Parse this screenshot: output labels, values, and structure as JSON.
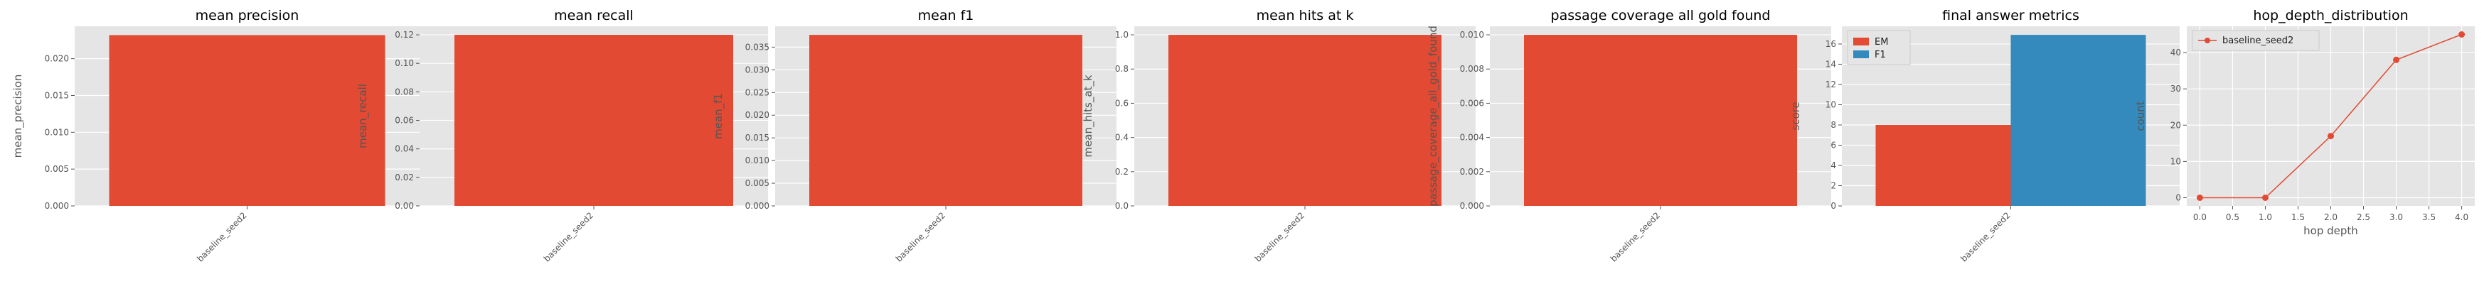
{
  "chart_data": [
    {
      "type": "bar",
      "title": "mean precision",
      "xlabel": "",
      "ylabel": "mean_precision",
      "categories": [
        "baseline_seed2"
      ],
      "series": [
        {
          "values": [
            0.0232
          ]
        }
      ],
      "ylim": [
        0,
        0.0244
      ],
      "yticks": [
        0.0,
        0.005,
        0.01,
        0.015,
        0.02
      ],
      "ytick_labels": [
        "0.000",
        "0.005",
        "0.010",
        "0.015",
        "0.020"
      ],
      "grid": true,
      "legend": "none"
    },
    {
      "type": "bar",
      "title": "mean recall",
      "xlabel": "",
      "ylabel": "mean_recall",
      "categories": [
        "baseline_seed2"
      ],
      "series": [
        {
          "values": [
            0.12
          ]
        }
      ],
      "ylim": [
        0,
        0.126
      ],
      "yticks": [
        0.0,
        0.02,
        0.04,
        0.06,
        0.08,
        0.1,
        0.12
      ],
      "ytick_labels": [
        "0.00",
        "0.02",
        "0.04",
        "0.06",
        "0.08",
        "0.10",
        "0.12"
      ],
      "grid": true,
      "legend": "none"
    },
    {
      "type": "bar",
      "title": "mean f1",
      "xlabel": "",
      "ylabel": "mean_f1",
      "categories": [
        "baseline_seed2"
      ],
      "series": [
        {
          "values": [
            0.0377
          ]
        }
      ],
      "ylim": [
        0,
        0.0396
      ],
      "yticks": [
        0.0,
        0.005,
        0.01,
        0.015,
        0.02,
        0.025,
        0.03,
        0.035
      ],
      "ytick_labels": [
        "0.000",
        "0.005",
        "0.010",
        "0.015",
        "0.020",
        "0.025",
        "0.030",
        "0.035"
      ],
      "grid": true,
      "legend": "none"
    },
    {
      "type": "bar",
      "title": "mean hits at k",
      "xlabel": "",
      "ylabel": "mean_hits_at_k",
      "categories": [
        "baseline_seed2"
      ],
      "series": [
        {
          "values": [
            1.0
          ]
        }
      ],
      "ylim": [
        0,
        1.05
      ],
      "yticks": [
        0.0,
        0.2,
        0.4,
        0.6,
        0.8,
        1.0
      ],
      "ytick_labels": [
        "0.0",
        "0.2",
        "0.4",
        "0.6",
        "0.8",
        "1.0"
      ],
      "grid": true,
      "legend": "none"
    },
    {
      "type": "bar",
      "title": "passage coverage all gold found",
      "xlabel": "",
      "ylabel": "passage_coverage_all_gold_found",
      "categories": [
        "baseline_seed2"
      ],
      "series": [
        {
          "values": [
            0.01
          ]
        }
      ],
      "ylim": [
        0,
        0.0105
      ],
      "yticks": [
        0.0,
        0.002,
        0.004,
        0.006,
        0.008,
        0.01
      ],
      "ytick_labels": [
        "0.000",
        "0.002",
        "0.004",
        "0.006",
        "0.008",
        "0.010"
      ],
      "grid": true,
      "legend": "none"
    },
    {
      "type": "bar",
      "title": "final answer metrics",
      "xlabel": "",
      "ylabel": "score",
      "categories": [
        "baseline_seed2"
      ],
      "series": [
        {
          "name": "EM",
          "values": [
            8.0
          ],
          "color": "#E24A33"
        },
        {
          "name": "F1",
          "values": [
            16.9
          ],
          "color": "#348ABD"
        }
      ],
      "ylim": [
        0,
        17.75
      ],
      "yticks": [
        0,
        2,
        4,
        6,
        8,
        10,
        12,
        14,
        16
      ],
      "ytick_labels": [
        "0",
        "2",
        "4",
        "6",
        "8",
        "10",
        "12",
        "14",
        "16"
      ],
      "grid": true,
      "legend": "top-left"
    },
    {
      "type": "line",
      "title": "hop_depth_distribution",
      "xlabel": "hop depth",
      "ylabel": "count",
      "series": [
        {
          "name": "baseline_seed2",
          "x": [
            0,
            1,
            2,
            3,
            4
          ],
          "values": [
            0,
            0,
            17,
            38,
            45
          ],
          "color": "#E24A33"
        }
      ],
      "xlim": [
        -0.2,
        4.2
      ],
      "ylim": [
        -2.25,
        47.25
      ],
      "xticks": [
        0.0,
        0.5,
        1.0,
        1.5,
        2.0,
        2.5,
        3.0,
        3.5,
        4.0
      ],
      "xtick_labels": [
        "0.0",
        "0.5",
        "1.0",
        "1.5",
        "2.0",
        "2.5",
        "3.0",
        "3.5",
        "4.0"
      ],
      "yticks": [
        0,
        10,
        20,
        30,
        40
      ],
      "ytick_labels": [
        "0",
        "10",
        "20",
        "30",
        "40"
      ],
      "grid": true,
      "legend": "top-left"
    }
  ],
  "style": {
    "plot_background": "#E5E5E5",
    "grid_color": "#FFFFFF",
    "bar_color": "#E24A33",
    "text_color": "#555555",
    "title_color": "#000000"
  }
}
